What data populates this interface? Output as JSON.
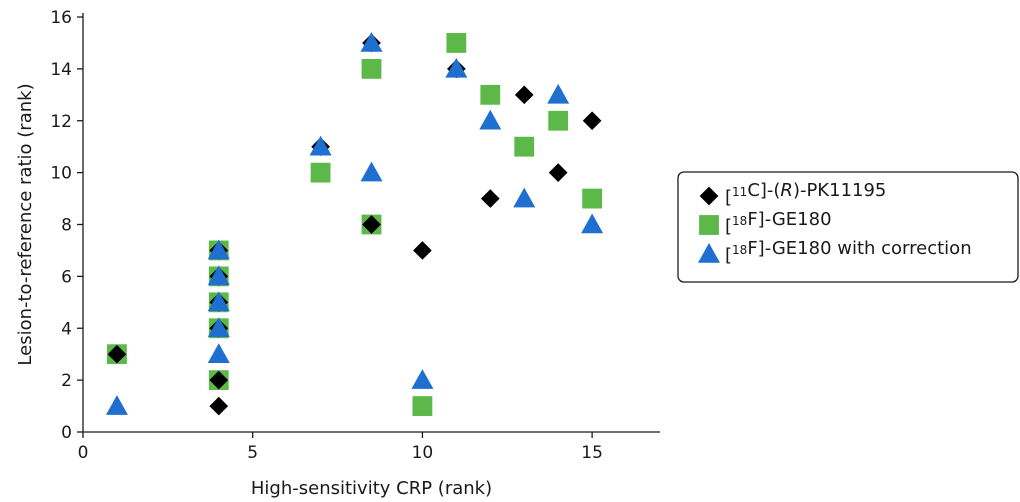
{
  "chart_data": {
    "type": "scatter",
    "xlabel": "High-sensitivity CRP (rank)",
    "ylabel": "Lesion-to-reference ratio (rank)",
    "xlim": [
      0,
      17
    ],
    "ylim": [
      0,
      16
    ],
    "xticks": [
      0,
      5,
      10,
      15
    ],
    "yticks": [
      0,
      2,
      4,
      6,
      8,
      10,
      12,
      14,
      16
    ],
    "grid": false,
    "legend_position": "right",
    "series": [
      {
        "name": "[11C]-(R)-PK11195",
        "legend_parts": [
          {
            "t": "[",
            "s": "n"
          },
          {
            "t": "11",
            "s": "sup"
          },
          {
            "t": "C]-(",
            "s": "n"
          },
          {
            "t": "R",
            "s": "i"
          },
          {
            "t": ")-PK11195",
            "s": "n"
          }
        ],
        "marker": "diamond",
        "color": "#000000",
        "points": [
          {
            "x": 1,
            "y": 3
          },
          {
            "x": 4,
            "y": 1
          },
          {
            "x": 4,
            "y": 2
          },
          {
            "x": 4,
            "y": 4
          },
          {
            "x": 4,
            "y": 5
          },
          {
            "x": 4,
            "y": 6
          },
          {
            "x": 4,
            "y": 7
          },
          {
            "x": 7,
            "y": 11
          },
          {
            "x": 8.5,
            "y": 8
          },
          {
            "x": 8.5,
            "y": 15
          },
          {
            "x": 10,
            "y": 7
          },
          {
            "x": 11,
            "y": 14
          },
          {
            "x": 12,
            "y": 9
          },
          {
            "x": 13,
            "y": 13
          },
          {
            "x": 14,
            "y": 10
          },
          {
            "x": 15,
            "y": 12
          }
        ]
      },
      {
        "name": "[18F]-GE180",
        "legend_parts": [
          {
            "t": "[",
            "s": "n"
          },
          {
            "t": "18",
            "s": "sup"
          },
          {
            "t": "F]-GE180",
            "s": "n"
          }
        ],
        "marker": "square",
        "color": "#5cb848",
        "points": [
          {
            "x": 1,
            "y": 3
          },
          {
            "x": 4,
            "y": 2
          },
          {
            "x": 4,
            "y": 4
          },
          {
            "x": 4,
            "y": 5
          },
          {
            "x": 4,
            "y": 6
          },
          {
            "x": 4,
            "y": 7
          },
          {
            "x": 7,
            "y": 10
          },
          {
            "x": 8.5,
            "y": 8
          },
          {
            "x": 8.5,
            "y": 14
          },
          {
            "x": 10,
            "y": 1
          },
          {
            "x": 11,
            "y": 15
          },
          {
            "x": 12,
            "y": 13
          },
          {
            "x": 13,
            "y": 11
          },
          {
            "x": 14,
            "y": 12
          },
          {
            "x": 15,
            "y": 9
          }
        ]
      },
      {
        "name": "[18F]-GE180 with correction",
        "legend_parts": [
          {
            "t": "[",
            "s": "n"
          },
          {
            "t": "18",
            "s": "sup"
          },
          {
            "t": "F]-GE180 with correction",
            "s": "n"
          }
        ],
        "marker": "triangle",
        "color": "#1f6fd0",
        "points": [
          {
            "x": 1,
            "y": 1
          },
          {
            "x": 4,
            "y": 3
          },
          {
            "x": 4,
            "y": 4
          },
          {
            "x": 4,
            "y": 5
          },
          {
            "x": 4,
            "y": 6
          },
          {
            "x": 4,
            "y": 7
          },
          {
            "x": 7,
            "y": 11
          },
          {
            "x": 8.5,
            "y": 10
          },
          {
            "x": 8.5,
            "y": 15
          },
          {
            "x": 10,
            "y": 2
          },
          {
            "x": 11,
            "y": 14
          },
          {
            "x": 12,
            "y": 12
          },
          {
            "x": 13,
            "y": 9
          },
          {
            "x": 14,
            "y": 13
          },
          {
            "x": 15,
            "y": 8
          }
        ]
      }
    ]
  }
}
